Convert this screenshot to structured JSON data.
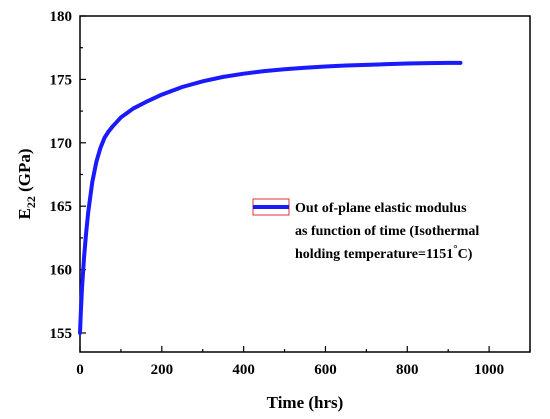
{
  "chart_data": {
    "type": "line",
    "title": "",
    "xlabel": "Time (hrs)",
    "ylabel_main": "E",
    "ylabel_sub": "22",
    "ylabel_unit": " (GPa)",
    "xlim": [
      0,
      1100
    ],
    "ylim": [
      153.5,
      180
    ],
    "x_ticks": [
      0,
      200,
      400,
      600,
      800,
      1000
    ],
    "x_tick_labels": [
      "0",
      "200",
      "400",
      "600",
      "800",
      "1000"
    ],
    "y_ticks": [
      155,
      160,
      165,
      170,
      175,
      180
    ],
    "y_tick_labels": [
      "155",
      "160",
      "165",
      "170",
      "175",
      "180"
    ],
    "grid": false,
    "legend_position": "center-right",
    "series": [
      {
        "name_lines": [
          "Out of-plane elastic modulus",
          "as function of time (Isothermal",
          "holding temperature=1151"
        ],
        "name_degree": "°",
        "name_unit": "C)",
        "color": "#1a1aff",
        "x": [
          0,
          2,
          5,
          10,
          15,
          20,
          30,
          40,
          50,
          60,
          70,
          80,
          100,
          130,
          160,
          200,
          250,
          300,
          350,
          400,
          450,
          500,
          550,
          600,
          650,
          700,
          750,
          800,
          850,
          900,
          930
        ],
        "y": [
          155.0,
          156.6,
          158.6,
          161.0,
          162.9,
          164.5,
          166.9,
          168.5,
          169.6,
          170.4,
          170.9,
          171.3,
          172.0,
          172.7,
          173.2,
          173.8,
          174.4,
          174.85,
          175.2,
          175.45,
          175.65,
          175.8,
          175.92,
          176.02,
          176.1,
          176.15,
          176.2,
          176.25,
          176.28,
          176.3,
          176.3
        ]
      }
    ]
  }
}
